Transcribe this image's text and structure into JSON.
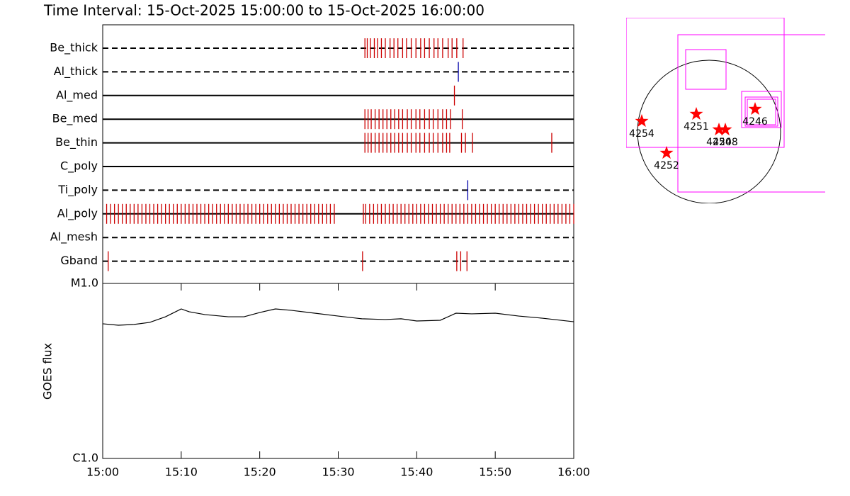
{
  "chart_data": [
    {
      "type": "timeline",
      "title": "Time Interval: 15-Oct-2025 15:00:00 to 15-Oct-2025 16:00:00",
      "xlim": [
        0,
        60
      ],
      "rows": [
        {
          "name": "Be_thick",
          "line": "dashed",
          "color": "#cc0000",
          "events": [
            33.4,
            33.7,
            34.1,
            34.6,
            35.0,
            35.5,
            36.0,
            36.6,
            37.1,
            37.6,
            38.2,
            38.7,
            39.3,
            39.9,
            40.5,
            41.0,
            41.6,
            42.2,
            42.7,
            43.3,
            44.0,
            44.5,
            45.1,
            45.9
          ]
        },
        {
          "name": "Al_thick",
          "line": "dashed",
          "color": "#0000aa",
          "events": [
            45.3
          ]
        },
        {
          "name": "Al_med",
          "line": "solid",
          "color": "#cc0000",
          "events": [
            44.8
          ]
        },
        {
          "name": "Be_med",
          "line": "solid",
          "color": "#cc0000",
          "events": [
            33.4,
            33.8,
            34.2,
            34.7,
            35.2,
            35.7,
            36.2,
            36.7,
            37.2,
            37.7,
            38.2,
            38.8,
            39.3,
            39.9,
            40.4,
            41.0,
            41.6,
            42.1,
            42.7,
            43.3,
            43.8,
            44.3,
            45.8
          ]
        },
        {
          "name": "Be_thin",
          "line": "solid",
          "color": "#cc0000",
          "events": [
            33.4,
            33.8,
            34.2,
            34.7,
            35.2,
            35.7,
            36.2,
            36.7,
            37.2,
            37.7,
            38.2,
            38.8,
            39.3,
            39.9,
            40.4,
            41.0,
            41.6,
            42.1,
            42.7,
            43.3,
            43.8,
            44.2,
            45.7,
            46.2,
            47.1,
            57.2
          ]
        },
        {
          "name": "C_poly",
          "line": "solid",
          "color": "#cc0000",
          "events": []
        },
        {
          "name": "Ti_poly",
          "line": "dashed",
          "color": "#0000aa",
          "events": [
            46.5
          ]
        },
        {
          "name": "Al_poly",
          "line": "solid",
          "color": "#cc0000",
          "events": [
            0.5,
            1,
            1.5,
            2,
            2.5,
            3,
            3.5,
            4,
            4.5,
            5,
            5.5,
            6,
            6.5,
            7,
            7.5,
            8,
            8.5,
            9,
            9.5,
            10,
            10.5,
            11,
            11.5,
            12,
            12.5,
            13,
            13.5,
            14,
            14.5,
            15,
            15.5,
            16,
            16.5,
            17,
            17.5,
            18,
            18.5,
            19,
            19.5,
            20,
            20.5,
            21,
            21.5,
            22,
            22.5,
            23,
            23.5,
            24,
            24.5,
            25,
            25.5,
            26,
            26.5,
            27,
            27.5,
            28,
            28.5,
            29,
            29.5,
            33.2,
            33.5,
            34,
            34.5,
            35,
            35.5,
            36,
            36.5,
            37,
            37.5,
            38,
            38.5,
            39,
            39.5,
            40,
            40.5,
            41,
            41.5,
            42,
            42.5,
            43,
            43.5,
            44,
            44.5,
            45,
            45.5,
            46,
            46.5,
            47,
            47.5,
            48,
            48.5,
            49,
            49.5,
            50,
            50.5,
            51,
            51.5,
            52,
            52.5,
            53,
            53.5,
            54,
            54.5,
            55,
            55.5,
            56,
            56.5,
            57,
            57.5,
            58,
            58.5,
            59,
            59.5,
            60
          ]
        },
        {
          "name": "Al_mesh",
          "line": "dashed",
          "color": "#cc0000",
          "events": []
        },
        {
          "name": "Gband",
          "line": "dashed",
          "color": "#cc0000",
          "events": [
            0.7,
            33.1,
            45.1,
            45.6,
            46.4
          ]
        }
      ]
    },
    {
      "type": "line",
      "ylabel": "GOES flux",
      "color": "#000000",
      "log_y": true,
      "x": [
        0,
        2,
        4,
        6,
        8,
        10,
        11,
        13,
        16,
        18,
        20,
        22,
        24,
        27,
        30,
        33,
        36,
        38,
        40,
        43,
        45,
        47,
        50,
        53,
        56,
        60
      ],
      "values": [
        5.88e-06,
        5.77e-06,
        5.83e-06,
        5.99e-06,
        6.45e-06,
        7.15e-06,
        6.89e-06,
        6.64e-06,
        6.45e-06,
        6.45e-06,
        6.82e-06,
        7.15e-06,
        7.02e-06,
        6.76e-06,
        6.51e-06,
        6.28e-06,
        6.22e-06,
        6.28e-06,
        6.1e-06,
        6.16e-06,
        6.76e-06,
        6.7e-06,
        6.76e-06,
        6.51e-06,
        6.33e-06,
        6.04e-06
      ],
      "xlim": [
        0,
        60
      ],
      "xticks": [
        {
          "value": 0,
          "label": "15:00"
        },
        {
          "value": 10,
          "label": "15:10"
        },
        {
          "value": 20,
          "label": "15:20"
        },
        {
          "value": 30,
          "label": "15:30"
        },
        {
          "value": 40,
          "label": "15:40"
        },
        {
          "value": 50,
          "label": "15:50"
        },
        {
          "value": 60,
          "label": "16:00"
        }
      ],
      "ylim": [
        1e-06,
        1e-05
      ],
      "yticks": [
        {
          "value": 1e-06,
          "label": "C1.0"
        },
        {
          "value": 1e-05,
          "label": "M1.0"
        }
      ]
    },
    {
      "type": "map",
      "xlim": [
        -1170,
        1640
      ],
      "ylim": [
        -1010,
        1610
      ],
      "radius": 1010,
      "box_color": "#ff00ff",
      "star_color": "#ff0000",
      "boxes": [
        {
          "xrange": [
            -1170,
            1060
          ],
          "yrange": [
            -220,
            1610
          ]
        },
        {
          "xrange": [
            -440,
            1990
          ],
          "yrange": [
            -850,
            1370
          ]
        },
        {
          "xrange": [
            -330,
            240
          ],
          "yrange": [
            600,
            1160
          ]
        },
        {
          "xrange": [
            460,
            1020
          ],
          "yrange": [
            60,
            570
          ]
        },
        {
          "xrange": [
            510,
            970
          ],
          "yrange": [
            80,
            490
          ]
        },
        {
          "xrange": [
            540,
            940
          ],
          "yrange": [
            100,
            460
          ]
        }
      ],
      "points": [
        {
          "label": "4254",
          "x": -950,
          "y": 150
        },
        {
          "label": "4251",
          "x": -180,
          "y": 250
        },
        {
          "label": "4252",
          "x": -600,
          "y": -300
        },
        {
          "label": "4250",
          "x": 140,
          "y": 30
        },
        {
          "label": "4248",
          "x": 230,
          "y": 30
        },
        {
          "label": "4246",
          "x": 650,
          "y": 320
        }
      ]
    }
  ]
}
